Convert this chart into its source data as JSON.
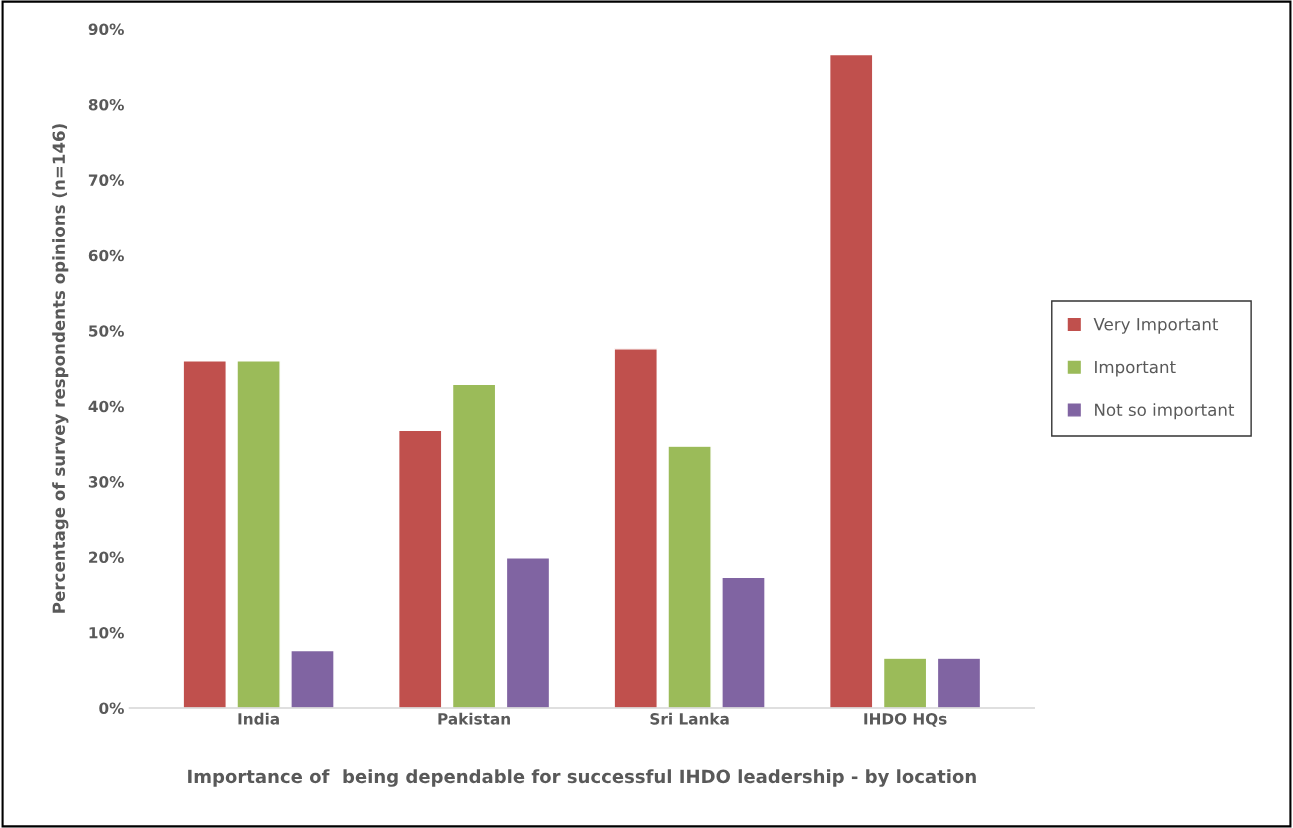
{
  "chart_data": {
    "type": "bar",
    "categories": [
      "India",
      "Pakistan",
      "Sri Lanka",
      "IHDO HQs"
    ],
    "series": [
      {
        "name": "Very Important",
        "color": "#c0504d",
        "values": [
          46.0,
          36.8,
          47.6,
          86.6
        ]
      },
      {
        "name": "Important",
        "color": "#9bbb59",
        "values": [
          46.0,
          42.9,
          34.7,
          6.6
        ]
      },
      {
        "name": "Not so important",
        "color": "#8064a2",
        "values": [
          7.6,
          19.9,
          17.3,
          6.6
        ]
      }
    ],
    "xlabel": "Importance of  being dependable for successful IHDO leadership - by location",
    "ylabel": "Percentage of survey respondents opinions (n=146)",
    "ylim": [
      0,
      90
    ],
    "yticks": [
      {
        "value": 0,
        "label": "0%"
      },
      {
        "value": 10,
        "label": "10%"
      },
      {
        "value": 20,
        "label": "20%"
      },
      {
        "value": 30,
        "label": "30%"
      },
      {
        "value": 40,
        "label": "40%"
      },
      {
        "value": 50,
        "label": "50%"
      },
      {
        "value": 60,
        "label": "60%"
      },
      {
        "value": 70,
        "label": "70%"
      },
      {
        "value": 80,
        "label": "80%"
      },
      {
        "value": 90,
        "label": "90%"
      }
    ],
    "grid": false,
    "legend": "right"
  }
}
